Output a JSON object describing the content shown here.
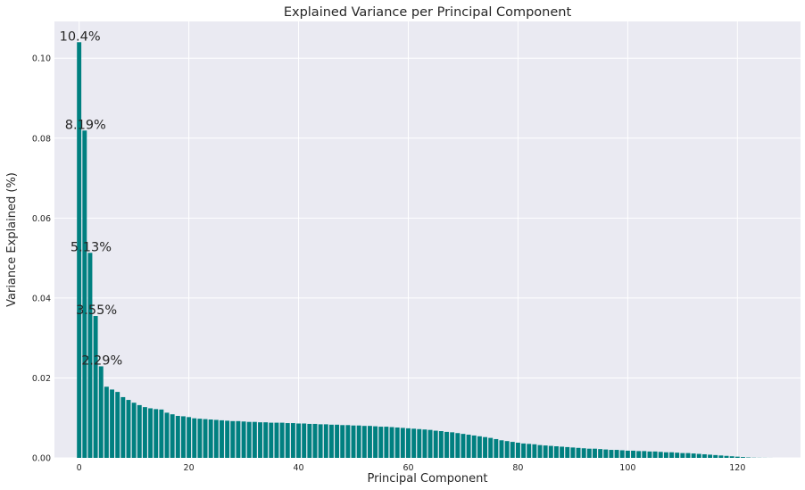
{
  "chart_data": {
    "type": "bar",
    "title": "Explained Variance per Principal Component",
    "xlabel": "Principal Component",
    "ylabel": "Variance Explained (%)",
    "xlim": [
      -4.5,
      131.5
    ],
    "ylim": [
      0.0,
      0.1092
    ],
    "xticks": [
      0,
      20,
      40,
      60,
      80,
      100,
      120
    ],
    "xtick_labels": [
      "0",
      "20",
      "40",
      "60",
      "80",
      "100",
      "120"
    ],
    "yticks": [
      0.0,
      0.02,
      0.04,
      0.06,
      0.08,
      0.1
    ],
    "ytick_labels": [
      "0.00",
      "0.02",
      "0.04",
      "0.06",
      "0.08",
      "0.10"
    ],
    "grid": true,
    "bar_color": "#008080",
    "background_color": "#eaeaf2",
    "grid_color": "#ffffff",
    "annotations": [
      {
        "index": 0,
        "value": 0.104,
        "text": "10.4%"
      },
      {
        "index": 1,
        "value": 0.0819,
        "text": "8.19%"
      },
      {
        "index": 2,
        "value": 0.0513,
        "text": "5.13%"
      },
      {
        "index": 3,
        "value": 0.0355,
        "text": "3.55%"
      },
      {
        "index": 4,
        "value": 0.0229,
        "text": "2.29%"
      }
    ],
    "values": [
      0.104,
      0.0819,
      0.0513,
      0.0355,
      0.0229,
      0.0178,
      0.0171,
      0.0165,
      0.0152,
      0.0145,
      0.0138,
      0.0132,
      0.0127,
      0.0124,
      0.0122,
      0.0121,
      0.0113,
      0.0109,
      0.0105,
      0.0104,
      0.0102,
      0.0099,
      0.0098,
      0.0097,
      0.0096,
      0.0095,
      0.0094,
      0.0093,
      0.0092,
      0.0092,
      0.0091,
      0.009,
      0.009,
      0.0089,
      0.0089,
      0.0088,
      0.0088,
      0.0088,
      0.0087,
      0.0087,
      0.0086,
      0.0086,
      0.0085,
      0.0085,
      0.0084,
      0.0084,
      0.0083,
      0.0083,
      0.0082,
      0.0082,
      0.0081,
      0.0081,
      0.008,
      0.008,
      0.0079,
      0.0078,
      0.0078,
      0.0077,
      0.0076,
      0.0075,
      0.0074,
      0.0073,
      0.0072,
      0.0071,
      0.007,
      0.0068,
      0.0067,
      0.0065,
      0.0064,
      0.0062,
      0.006,
      0.0058,
      0.0056,
      0.0054,
      0.0052,
      0.005,
      0.0047,
      0.0044,
      0.0042,
      0.004,
      0.0038,
      0.0036,
      0.0035,
      0.0034,
      0.0032,
      0.0031,
      0.003,
      0.0029,
      0.0028,
      0.0027,
      0.0026,
      0.0025,
      0.0024,
      0.0023,
      0.0023,
      0.0022,
      0.0021,
      0.002,
      0.002,
      0.0019,
      0.0018,
      0.0018,
      0.0017,
      0.0017,
      0.0016,
      0.0016,
      0.0015,
      0.0014,
      0.0014,
      0.0013,
      0.0012,
      0.0012,
      0.0011,
      0.001,
      0.0009,
      0.0008,
      0.0007,
      0.0006,
      0.0005,
      0.0004,
      0.0003,
      0.0002,
      0.0001,
      5e-05,
      3e-05,
      2e-05,
      1e-05
    ]
  }
}
